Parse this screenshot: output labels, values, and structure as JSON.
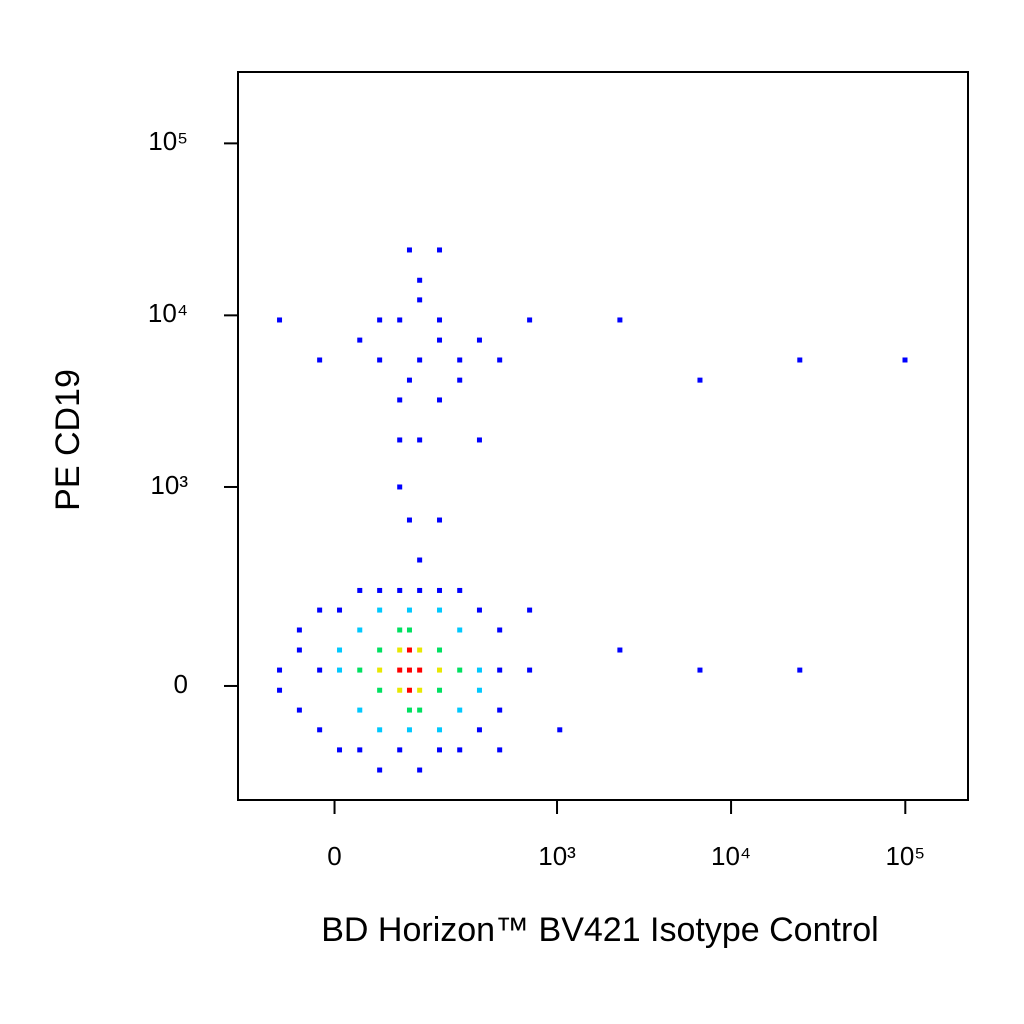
{
  "chart_data": {
    "type": "scatter",
    "x_label": "BD Horizon™ BV421 Isotype Control",
    "y_label": "PE CD19",
    "xlim": [
      -175,
      229000
    ],
    "ylim": [
      -307,
      260000
    ],
    "xticks": [
      0,
      {
        "value": 1000,
        "label": "10³"
      },
      {
        "value": 10000,
        "label": "10⁴"
      },
      {
        "value": 100000,
        "label": "10⁵"
      }
    ],
    "yticks": [
      0,
      {
        "value": 1000,
        "label": "10³"
      },
      {
        "value": 10000,
        "label": "10⁴"
      },
      {
        "value": 100000,
        "label": "10⁵"
      }
    ],
    "series": [
      {
        "color": "#0000ff",
        "x": [
          -21,
          -51,
          -84,
          -21,
          7,
          36,
          67,
          103,
          146,
          199,
          267,
          352,
          464,
          464,
          464,
          352,
          267,
          199,
          146,
          103,
          67,
          36,
          7,
          -21,
          -51,
          -84,
          -51,
          694,
          1037,
          2300,
          6630,
          24800,
          694,
          146,
          123,
          199,
          103,
          146,
          199,
          67,
          267,
          103,
          199,
          146,
          67,
          267,
          36,
          352,
          123,
          199,
          -21,
          464,
          146,
          103,
          199,
          694,
          2300,
          6630,
          24800,
          99600,
          103,
          123,
          146,
          352,
          -84,
          464
        ],
        "values": [
          30,
          70,
          -8,
          -87,
          -135,
          -135,
          -193,
          -135,
          -193,
          -135,
          -135,
          -87,
          -46,
          30,
          115,
          168,
          232,
          232,
          232,
          232,
          232,
          232,
          168,
          168,
          115,
          30,
          -46,
          30,
          -87,
          70,
          30,
          30,
          168,
          5500,
          4200,
          7180,
          9400,
          12300,
          3220,
          5500,
          5500,
          3220,
          9400,
          16000,
          9400,
          4200,
          7180,
          7180,
          24000,
          24000,
          5500,
          5500,
          1883,
          1000,
          638,
          9400,
          9400,
          4200,
          5500,
          5500,
          1883,
          638,
          365,
          1883,
          9400,
          -135
        ]
      },
      {
        "color": "#00c8ff",
        "x": [
          36,
          267,
          36,
          267,
          67,
          199,
          67,
          199,
          123,
          123,
          7,
          352,
          7,
          352
        ],
        "values": [
          115,
          115,
          -46,
          -46,
          168,
          168,
          -87,
          -87,
          168,
          -87,
          30,
          30,
          70,
          -8
        ]
      },
      {
        "color": "#00e060",
        "x": [
          67,
          199,
          67,
          199,
          123,
          123,
          103,
          146,
          36,
          267
        ],
        "values": [
          70,
          70,
          -8,
          -8,
          115,
          -46,
          115,
          -46,
          30,
          30
        ]
      },
      {
        "color": "#e8e800",
        "x": [
          103,
          146,
          103,
          146,
          199,
          67
        ],
        "values": [
          70,
          70,
          -8,
          -8,
          30,
          30
        ]
      },
      {
        "color": "#ff0000",
        "x": [
          103,
          123,
          146,
          123,
          123
        ],
        "values": [
          30,
          30,
          30,
          70,
          -8
        ]
      }
    ]
  }
}
